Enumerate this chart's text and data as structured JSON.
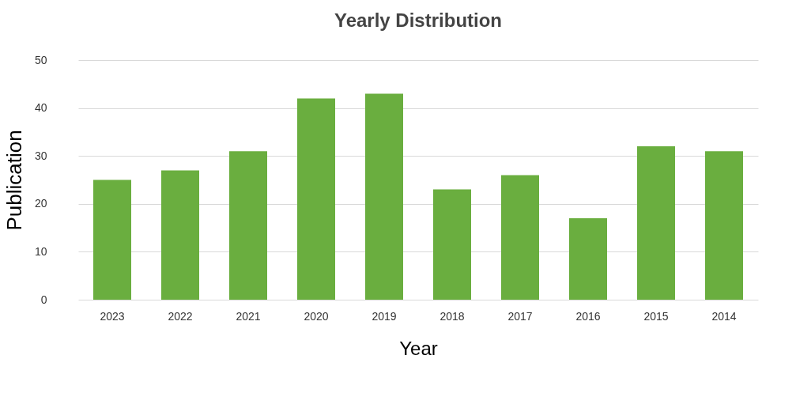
{
  "chart_data": {
    "type": "bar",
    "title": "Yearly Distribution",
    "xlabel": "Year",
    "ylabel": "Publication",
    "categories": [
      "2023",
      "2022",
      "2021",
      "2020",
      "2019",
      "2018",
      "2017",
      "2016",
      "2015",
      "2014"
    ],
    "values": [
      25,
      27,
      31,
      42,
      43,
      23,
      26,
      17,
      32,
      31
    ],
    "color": "#6aae3f",
    "ylim": [
      0,
      50
    ],
    "yticks": [
      0,
      10,
      20,
      30,
      40,
      50
    ],
    "grid": "y"
  }
}
